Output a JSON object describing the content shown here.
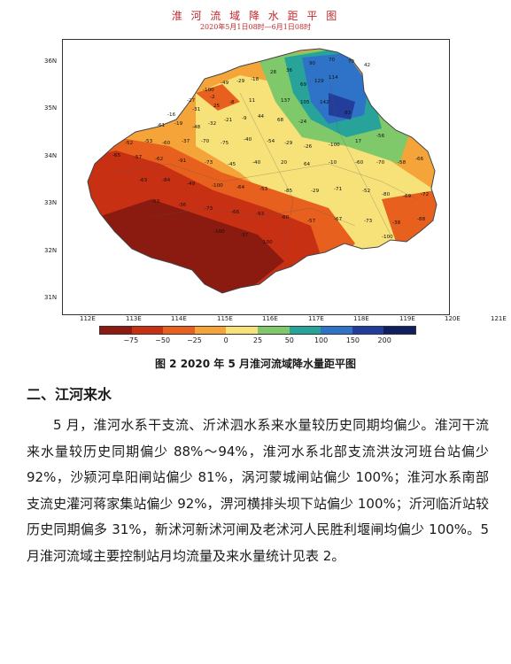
{
  "figure": {
    "map_title": "淮 河 流 域 降 水 距 平 图",
    "map_subtitle": "2020年5月1日08时—6月1日08时",
    "caption": "图 2   2020 年 5 月淮河流域降水量距平图",
    "lat_labels": [
      "36N",
      "35N",
      "34N",
      "33N",
      "32N",
      "31N"
    ],
    "lon_labels": [
      "112E",
      "113E",
      "114E",
      "115E",
      "116E",
      "117E",
      "118E",
      "119E",
      "120E",
      "121E"
    ],
    "legend_ticks": [
      "−75",
      "−50",
      "−25",
      "0",
      "25",
      "50",
      "100",
      "150",
      "200"
    ],
    "legend_colors": [
      "#8b1a10",
      "#c83014",
      "#e8601e",
      "#f5a43a",
      "#f7e27a",
      "#7fc96a",
      "#27a39a",
      "#2f73c8",
      "#233d9a",
      "#10205e"
    ],
    "station_values": [
      "-100",
      "-49",
      "-29",
      "-18",
      "28",
      "36",
      "90",
      "70",
      "79",
      "42",
      "-27",
      "-2",
      "69",
      "129",
      "114",
      "-16",
      "-31",
      "25",
      "-8",
      "11",
      "137",
      "105",
      "142",
      "-61",
      "-19",
      "-48",
      "-32",
      "-21",
      "-9",
      "44",
      "68",
      "-24",
      "83",
      "-52",
      "-53",
      "-60",
      "-37",
      "-70",
      "-75",
      "-40",
      "-54",
      "-29",
      "-26",
      "-100",
      "17",
      "-56",
      "-65",
      "-57",
      "-62",
      "-91",
      "-73",
      "-45",
      "-40",
      "20",
      "64",
      "-10",
      "-60",
      "-70",
      "-58",
      "-66",
      "-63",
      "-84",
      "-49",
      "-100",
      "-64",
      "-53",
      "-85",
      "-29",
      "-71",
      "-52",
      "-80",
      "-69",
      "-72",
      "-53",
      "-36",
      "-73",
      "-66",
      "-93",
      "-60",
      "-57",
      "-67",
      "-73",
      "-38",
      "-88",
      "-100",
      "-37",
      "-100",
      "-100"
    ]
  },
  "section": {
    "heading": "二、江河来水"
  },
  "body": {
    "paragraph": "5 月，淮河水系干支流、沂沭泗水系来水量较历史同期均偏少。淮河干流来水量较历史同期偏少 88%～94%，淮河水系北部支流洪汝河班台站偏少 92%，沙颍河阜阳闸站偏少 81%，涡河蒙城闸站偏少 100%；淮河水系南部支流史灌河蒋家集站偏少 92%，淠河横排头坝下站偏少 100%；沂河临沂站较历史同期偏多 31%，新沭河新沭河闸及老沭河人民胜利堰闸均偏少 100%。5 月淮河流域主要控制站月均流量及来水量统计见表 2。"
  }
}
